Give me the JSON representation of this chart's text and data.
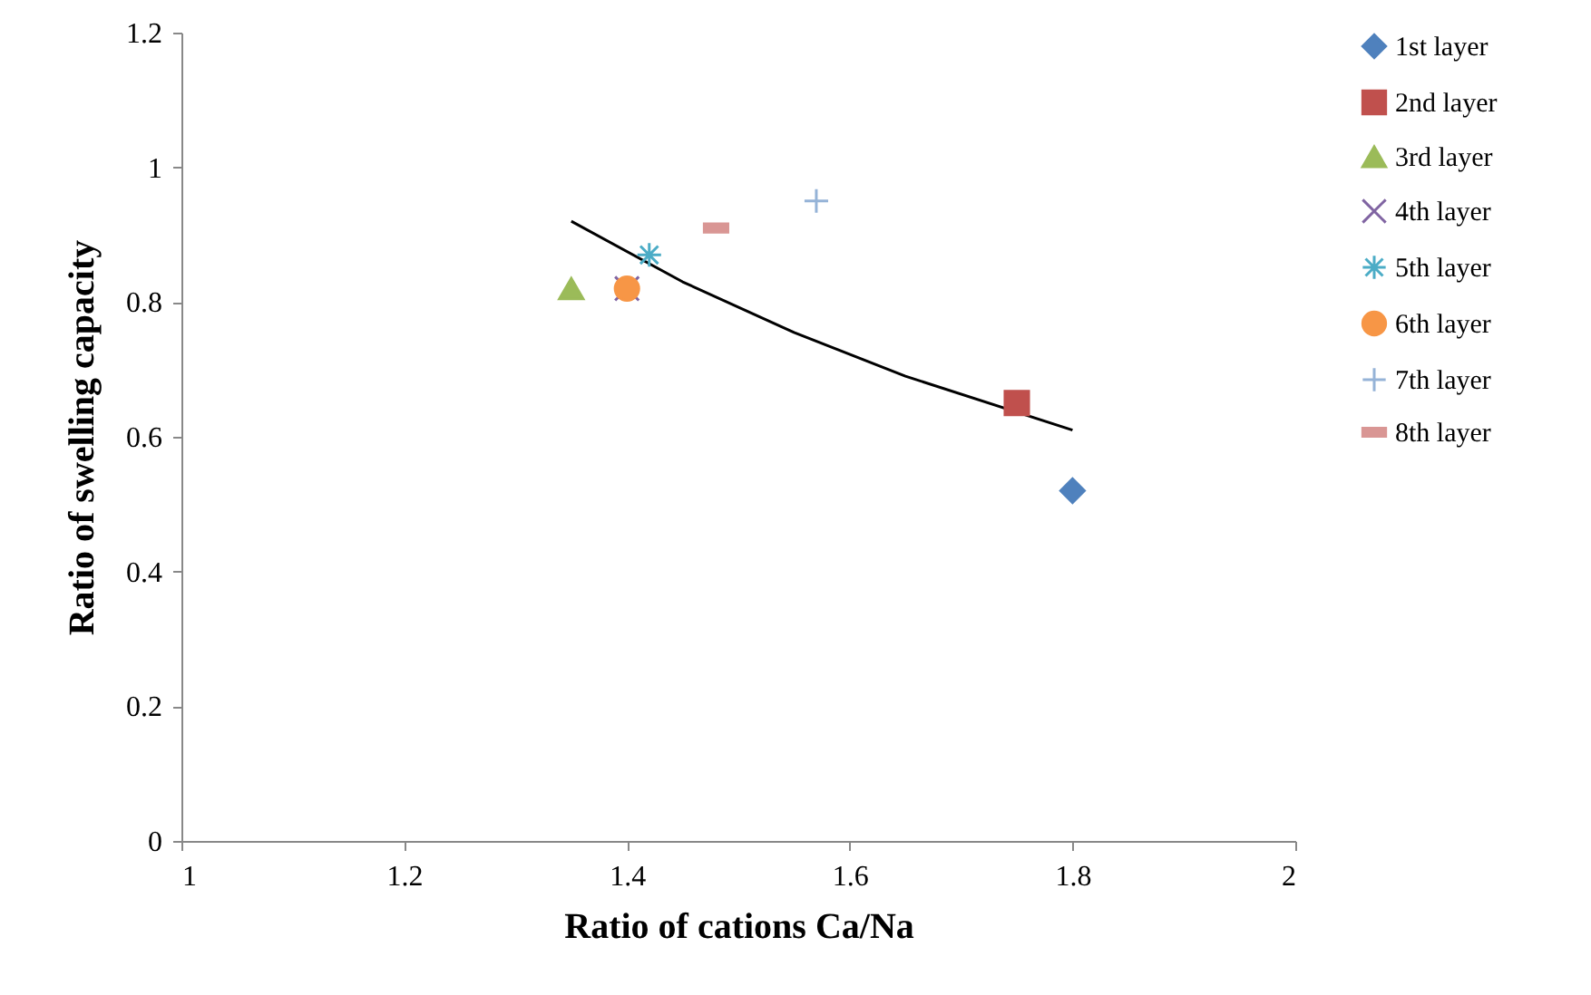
{
  "chart_data": {
    "type": "scatter",
    "xlabel": "Ratio of cations Ca/Na",
    "ylabel": "Ratio of swelling capacity",
    "xlim": [
      1,
      2
    ],
    "xticks": [
      1,
      1.2,
      1.4,
      1.6,
      1.8,
      2
    ],
    "ylim": [
      0,
      1.2
    ],
    "yticks": [
      0,
      0.2,
      0.4,
      0.6,
      0.8,
      1,
      1.2
    ],
    "grid": false,
    "legend": "right",
    "series": [
      {
        "name": "1st layer",
        "color": "#4f81bd",
        "marker": "diamond",
        "x": [
          1.8
        ],
        "values": [
          0.52
        ]
      },
      {
        "name": "2nd layer",
        "color": "#c0504d",
        "marker": "square",
        "x": [
          1.75
        ],
        "values": [
          0.65
        ]
      },
      {
        "name": "3rd layer",
        "color": "#9bbb59",
        "marker": "triangle",
        "x": [
          1.35
        ],
        "values": [
          0.82
        ]
      },
      {
        "name": "4th layer",
        "color": "#8064a2",
        "marker": "cross",
        "x": [
          1.4
        ],
        "values": [
          0.82
        ]
      },
      {
        "name": "5th layer",
        "color": "#4bacc6",
        "x": [
          1.42
        ],
        "values": [
          0.87
        ]
      },
      {
        "name": "6th layer",
        "color": "#f79646",
        "marker": "circle",
        "x": [
          1.4
        ],
        "values": [
          0.82
        ]
      },
      {
        "name": "7th layer",
        "color": "#95b3d7",
        "x": [
          1.57
        ],
        "values": [
          0.95
        ]
      },
      {
        "name": "8th layer",
        "color": "#d99694",
        "x": [
          1.48
        ],
        "values": [
          0.91
        ]
      },
      {
        "type": "line",
        "color": "#000000",
        "marker": "none",
        "line_style": "solid",
        "x": [
          1.35,
          1.45,
          1.55,
          1.65,
          1.8
        ],
        "values": [
          0.92,
          0.83,
          0.755,
          0.69,
          0.61
        ]
      }
    ]
  }
}
